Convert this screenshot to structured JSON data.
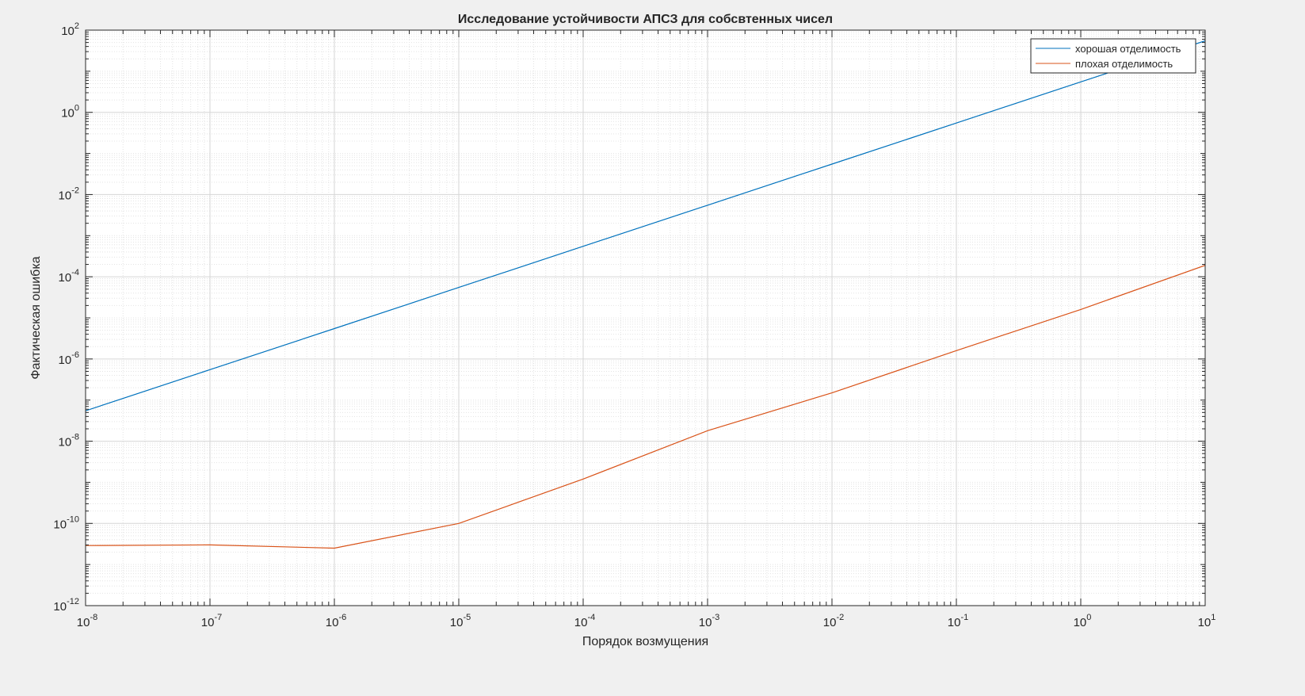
{
  "chart_data": {
    "type": "line",
    "title": "Исследование устойчивости АПСЗ для собсвтенных чисел",
    "xlabel": "Порядок возмущения",
    "ylabel": "Фактическая ошибка",
    "xscale": "log",
    "yscale": "log",
    "xlim": [
      1e-08,
      10
    ],
    "ylim": [
      1e-12,
      100
    ],
    "grid": true,
    "minor_grid": true,
    "legend_position": "top-right",
    "x_ticks": [
      {
        "base": "10",
        "exp": "-8"
      },
      {
        "base": "10",
        "exp": "-7"
      },
      {
        "base": "10",
        "exp": "-6"
      },
      {
        "base": "10",
        "exp": "-5"
      },
      {
        "base": "10",
        "exp": "-4"
      },
      {
        "base": "10",
        "exp": "-3"
      },
      {
        "base": "10",
        "exp": "-2"
      },
      {
        "base": "10",
        "exp": "-1"
      },
      {
        "base": "10",
        "exp": "0"
      },
      {
        "base": "10",
        "exp": "1"
      }
    ],
    "y_ticks": [
      {
        "base": "10",
        "exp": "-12"
      },
      {
        "base": "10",
        "exp": "-10"
      },
      {
        "base": "10",
        "exp": "-8"
      },
      {
        "base": "10",
        "exp": "-6"
      },
      {
        "base": "10",
        "exp": "-4"
      },
      {
        "base": "10",
        "exp": "-2"
      },
      {
        "base": "10",
        "exp": "0"
      },
      {
        "base": "10",
        "exp": "2"
      }
    ],
    "series": [
      {
        "name": "хорошая отделимость",
        "color": "#0072bd",
        "x": [
          1e-08,
          1e-07,
          1e-06,
          1e-05,
          0.0001,
          0.001,
          0.01,
          0.1,
          1,
          10
        ],
        "y": [
          5.5e-08,
          5.5e-07,
          5.5e-06,
          5.5e-05,
          0.00055,
          0.0055,
          0.055,
          0.55,
          5.5,
          55
        ]
      },
      {
        "name": "плохая отделимость",
        "color": "#d95319",
        "x": [
          1e-08,
          1e-07,
          1e-06,
          1e-05,
          0.0001,
          0.001,
          0.01,
          0.1,
          1,
          10
        ],
        "y": [
          2.9e-11,
          3e-11,
          2.5e-11,
          1e-10,
          1.2e-09,
          1.8e-08,
          1.5e-07,
          1.6e-06,
          1.6e-05,
          0.00019
        ]
      }
    ]
  }
}
